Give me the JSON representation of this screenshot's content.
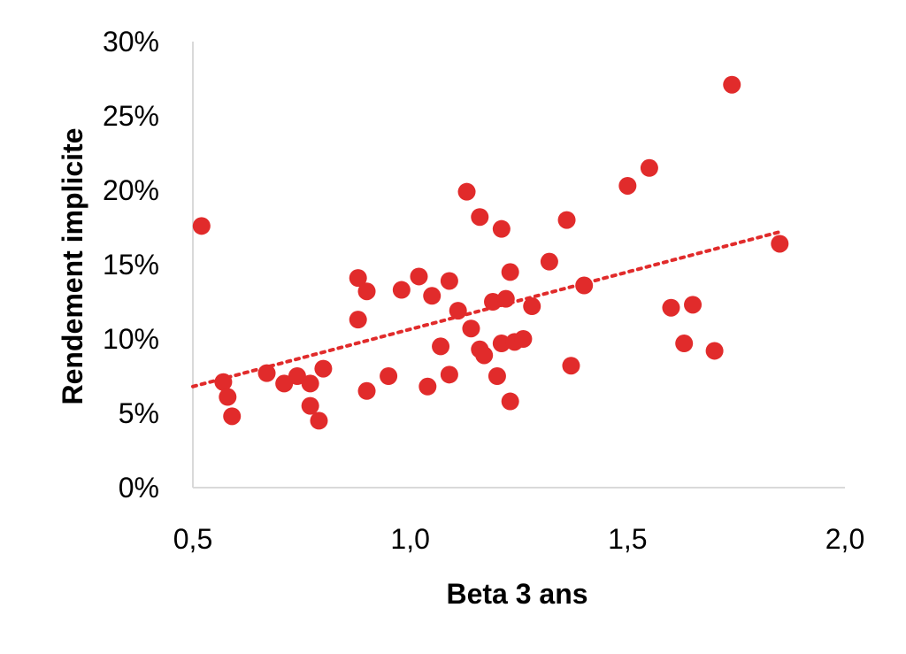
{
  "chart_data": {
    "type": "scatter",
    "title": "",
    "xlabel": "Beta 3 ans",
    "ylabel": "Rendement implicite",
    "xlim": [
      0.5,
      2.0
    ],
    "ylim": [
      0,
      0.3
    ],
    "x_ticks": [
      0.5,
      1.0,
      1.5,
      2.0
    ],
    "x_tick_labels": [
      "0,5",
      "1,0",
      "1,5",
      "2,0"
    ],
    "y_ticks": [
      0,
      0.05,
      0.1,
      0.15,
      0.2,
      0.25,
      0.3
    ],
    "y_tick_labels": [
      "0%",
      "5%",
      "10%",
      "15%",
      "20%",
      "25%",
      "30%"
    ],
    "grid": false,
    "legend": "none",
    "series": [
      {
        "marker_color": "#e12b2b",
        "points": [
          [
            0.52,
            0.176
          ],
          [
            0.57,
            0.071
          ],
          [
            0.58,
            0.061
          ],
          [
            0.59,
            0.048
          ],
          [
            0.67,
            0.077
          ],
          [
            0.71,
            0.07
          ],
          [
            0.74,
            0.075
          ],
          [
            0.77,
            0.07
          ],
          [
            0.77,
            0.055
          ],
          [
            0.79,
            0.045
          ],
          [
            0.8,
            0.08
          ],
          [
            0.88,
            0.113
          ],
          [
            0.88,
            0.141
          ],
          [
            0.9,
            0.132
          ],
          [
            0.9,
            0.065
          ],
          [
            0.95,
            0.075
          ],
          [
            0.98,
            0.133
          ],
          [
            1.02,
            0.142
          ],
          [
            1.04,
            0.068
          ],
          [
            1.05,
            0.129
          ],
          [
            1.07,
            0.095
          ],
          [
            1.09,
            0.139
          ],
          [
            1.09,
            0.076
          ],
          [
            1.11,
            0.119
          ],
          [
            1.13,
            0.199
          ],
          [
            1.14,
            0.107
          ],
          [
            1.16,
            0.182
          ],
          [
            1.16,
            0.093
          ],
          [
            1.17,
            0.089
          ],
          [
            1.19,
            0.125
          ],
          [
            1.2,
            0.075
          ],
          [
            1.21,
            0.174
          ],
          [
            1.21,
            0.097
          ],
          [
            1.22,
            0.127
          ],
          [
            1.23,
            0.145
          ],
          [
            1.23,
            0.058
          ],
          [
            1.24,
            0.098
          ],
          [
            1.26,
            0.1
          ],
          [
            1.28,
            0.122
          ],
          [
            1.32,
            0.152
          ],
          [
            1.36,
            0.18
          ],
          [
            1.37,
            0.082
          ],
          [
            1.4,
            0.136
          ],
          [
            1.5,
            0.203
          ],
          [
            1.55,
            0.215
          ],
          [
            1.6,
            0.121
          ],
          [
            1.63,
            0.097
          ],
          [
            1.65,
            0.123
          ],
          [
            1.7,
            0.092
          ],
          [
            1.74,
            0.271
          ],
          [
            1.85,
            0.164
          ]
        ]
      }
    ],
    "trendline": {
      "type": "linear",
      "style": "dotted",
      "color": "#e12b2b",
      "from": [
        0.5,
        0.068
      ],
      "to": [
        1.85,
        0.172
      ]
    }
  }
}
